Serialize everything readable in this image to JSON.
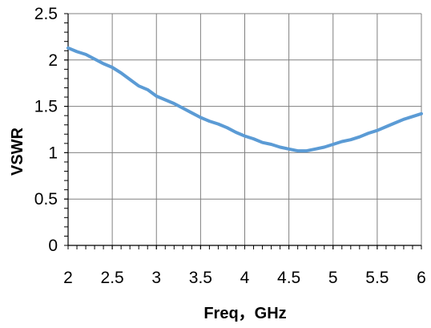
{
  "chart_data": {
    "type": "line",
    "title": "",
    "xlabel": "Freq，GHz",
    "ylabel": "VSWR",
    "xlim": [
      2,
      6
    ],
    "ylim": [
      0,
      2.5
    ],
    "x_ticks": [
      2,
      2.5,
      3,
      3.5,
      4,
      4.5,
      5,
      5.5,
      6
    ],
    "y_ticks": [
      0,
      0.5,
      1,
      1.5,
      2,
      2.5
    ],
    "x_tick_labels": [
      "2",
      "2.5",
      "3",
      "3.5",
      "4",
      "4.5",
      "5",
      "5.5",
      "6"
    ],
    "y_tick_labels": [
      "0",
      "0.5",
      "1",
      "1.5",
      "2",
      "2.5"
    ],
    "grid": true,
    "minor_ticks_per_interval": 5,
    "legend": "none",
    "colors": {
      "line": "#5b9bd5",
      "grid": "#808080",
      "axis": "#000000"
    },
    "series": [
      {
        "x": [
          2.0,
          2.1,
          2.2,
          2.3,
          2.4,
          2.5,
          2.6,
          2.7,
          2.8,
          2.9,
          3.0,
          3.1,
          3.2,
          3.3,
          3.4,
          3.5,
          3.6,
          3.7,
          3.8,
          3.9,
          4.0,
          4.1,
          4.2,
          4.3,
          4.4,
          4.5,
          4.6,
          4.7,
          4.8,
          4.9,
          5.0,
          5.1,
          5.2,
          5.3,
          5.4,
          5.5,
          5.6,
          5.7,
          5.8,
          5.9,
          6.0
        ],
        "y": [
          2.13,
          2.09,
          2.06,
          2.01,
          1.96,
          1.92,
          1.86,
          1.79,
          1.72,
          1.68,
          1.61,
          1.57,
          1.53,
          1.48,
          1.43,
          1.38,
          1.34,
          1.31,
          1.27,
          1.22,
          1.18,
          1.15,
          1.11,
          1.09,
          1.06,
          1.04,
          1.02,
          1.02,
          1.04,
          1.06,
          1.09,
          1.12,
          1.14,
          1.17,
          1.21,
          1.24,
          1.28,
          1.32,
          1.36,
          1.39,
          1.42
        ]
      }
    ]
  }
}
